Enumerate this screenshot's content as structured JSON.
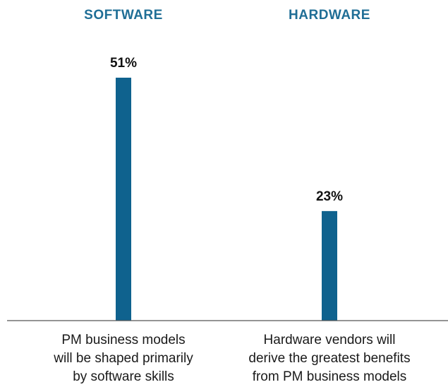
{
  "chart_data": {
    "type": "bar",
    "categories": [
      "SOFTWARE",
      "HARDWARE"
    ],
    "values": [
      51,
      23
    ],
    "data_labels": [
      "51%",
      "23%"
    ],
    "category_descriptions": [
      [
        "PM business models",
        "will be shaped primarily",
        "by software skills"
      ],
      [
        "Hardware vendors will",
        "derive the greatest benefits",
        "from PM business models"
      ]
    ],
    "ylim": [
      0,
      51
    ],
    "grid": false,
    "legend": "none",
    "colors": {
      "bar": "#0f628e",
      "header": "#1f6e96",
      "axis": "#555555"
    }
  }
}
